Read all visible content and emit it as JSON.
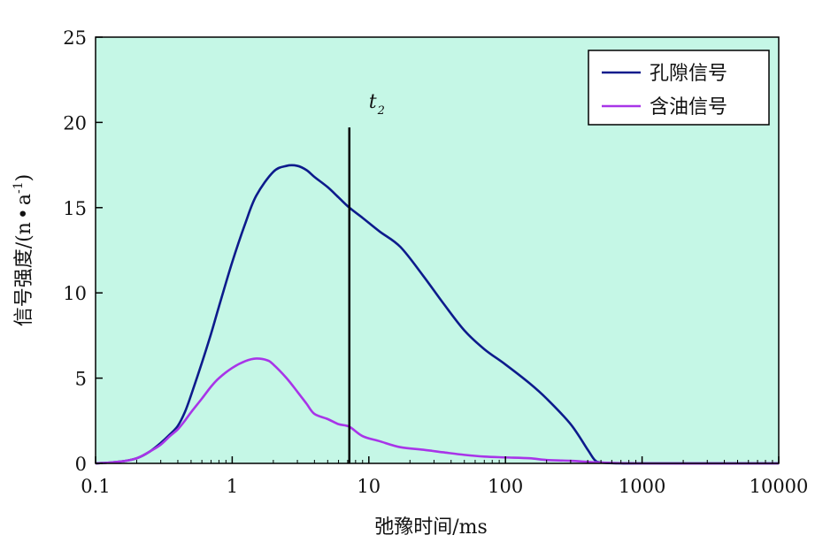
{
  "chart_data": {
    "type": "line",
    "xscale": "log",
    "xlim": [
      0.1,
      10000
    ],
    "ylim": [
      0,
      25
    ],
    "xticks": [
      0.1,
      1,
      10,
      100,
      1000,
      10000
    ],
    "xtick_labels": [
      "0.1",
      "1",
      "10",
      "100",
      "1000",
      "10000"
    ],
    "yticks": [
      0,
      5,
      10,
      15,
      20,
      25
    ],
    "ytick_labels": [
      "0",
      "5",
      "10",
      "15",
      "20",
      "25"
    ],
    "xlabel": "弛豫时间/ms",
    "ylabel": "信号强度/(n·a⁻¹)",
    "ylabel_main": "信号强度/(n",
    "ylabel_dot": "•",
    "ylabel_a": "a",
    "ylabel_sup": "-1",
    "ylabel_close": ")",
    "grid": false,
    "background_color": "#c5f7e6",
    "legend_position": "top-right",
    "annotation": {
      "text": "t",
      "subscript": "2",
      "x": 7.2,
      "y_range": [
        0,
        19.7
      ]
    },
    "series": [
      {
        "name": "孔隙信号",
        "color": "#0d1b8c",
        "x": [
          0.1,
          0.15,
          0.2,
          0.25,
          0.3,
          0.35,
          0.4,
          0.45,
          0.5,
          0.6,
          0.7,
          0.8,
          1.0,
          1.25,
          1.5,
          2.0,
          2.5,
          3.0,
          3.5,
          4.0,
          5.0,
          6.0,
          7.2,
          9.0,
          12.0,
          17.0,
          25.0,
          35.0,
          50.0,
          70.0,
          100.0,
          150.0,
          200.0,
          300.0,
          400.0,
          450.0,
          500.0,
          700.0,
          1000.0,
          10000.0
        ],
        "y": [
          0.0,
          0.1,
          0.3,
          0.7,
          1.2,
          1.7,
          2.2,
          3.0,
          4.0,
          5.9,
          7.6,
          9.2,
          11.8,
          14.1,
          15.7,
          17.1,
          17.45,
          17.45,
          17.2,
          16.8,
          16.2,
          15.6,
          15.0,
          14.4,
          13.6,
          12.7,
          11.0,
          9.4,
          7.8,
          6.7,
          5.8,
          4.7,
          3.8,
          2.3,
          0.8,
          0.2,
          0.05,
          0.0,
          0.0,
          0.0
        ]
      },
      {
        "name": "含油信号",
        "color": "#a835e8",
        "x": [
          0.1,
          0.15,
          0.2,
          0.25,
          0.3,
          0.35,
          0.4,
          0.45,
          0.5,
          0.6,
          0.7,
          0.8,
          1.0,
          1.25,
          1.5,
          1.8,
          2.0,
          2.5,
          3.0,
          3.5,
          4.0,
          5.0,
          6.0,
          7.2,
          9.0,
          12.0,
          17.0,
          25.0,
          35.0,
          50.0,
          70.0,
          100.0,
          150.0,
          200.0,
          300.0,
          500.0,
          1000.0,
          10000.0
        ],
        "y": [
          0.0,
          0.1,
          0.3,
          0.7,
          1.1,
          1.6,
          2.0,
          2.5,
          3.0,
          3.8,
          4.5,
          5.0,
          5.6,
          6.0,
          6.15,
          6.05,
          5.8,
          5.0,
          4.2,
          3.5,
          2.9,
          2.6,
          2.3,
          2.15,
          1.6,
          1.3,
          0.95,
          0.8,
          0.65,
          0.5,
          0.4,
          0.35,
          0.3,
          0.2,
          0.15,
          0.05,
          0.0,
          0.0
        ]
      }
    ]
  }
}
